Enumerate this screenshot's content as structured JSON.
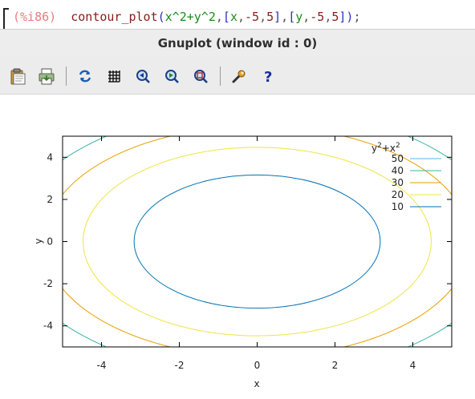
{
  "command": {
    "label": "(%i86)",
    "function": "contour_plot",
    "expression": "x^2+y^2",
    "x_var": "x",
    "x_min": "-5",
    "x_max": "5",
    "y_var": "y",
    "y_min": "-5",
    "y_max": "5"
  },
  "window": {
    "title": "Gnuplot (window id : 0)"
  },
  "toolbar": {
    "buttons": [
      {
        "name": "copy-clipboard",
        "icon": "clipboard-icon"
      },
      {
        "name": "print",
        "icon": "printer-icon"
      },
      {
        "name": "replot",
        "icon": "refresh-icon"
      },
      {
        "name": "grid",
        "icon": "grid-icon"
      },
      {
        "name": "previous-zoom",
        "icon": "zoom-previous-icon"
      },
      {
        "name": "next-zoom",
        "icon": "zoom-next-icon"
      },
      {
        "name": "autoscale",
        "icon": "zoom-autoscale-icon"
      },
      {
        "name": "configure",
        "icon": "wrench-icon"
      },
      {
        "name": "help",
        "icon": "help-icon"
      }
    ]
  },
  "chart_data": {
    "type": "line",
    "subtype": "contour",
    "title": "",
    "xlabel": "x",
    "ylabel": "y",
    "xlim": [
      -5,
      5
    ],
    "ylim": [
      -5,
      5
    ],
    "xticks": [
      "-4",
      "-2",
      "0",
      "2",
      "4"
    ],
    "yticks": [
      "-4",
      "-2",
      "0",
      "2",
      "4"
    ],
    "grid": false,
    "legend_position": "top-right",
    "legend_title_base": "y",
    "legend_title_exp1": "2",
    "legend_title_mid": "+x",
    "legend_title_exp2": "2",
    "series": [
      {
        "name": "50",
        "level": 50,
        "color": "#56b4e9"
      },
      {
        "name": "40",
        "level": 40,
        "color": "#3bb3a5"
      },
      {
        "name": "30",
        "level": 30,
        "color": "#e69f00"
      },
      {
        "name": "20",
        "level": 20,
        "color": "#f0e442"
      },
      {
        "name": "10",
        "level": 10,
        "color": "#0072b2"
      }
    ]
  }
}
